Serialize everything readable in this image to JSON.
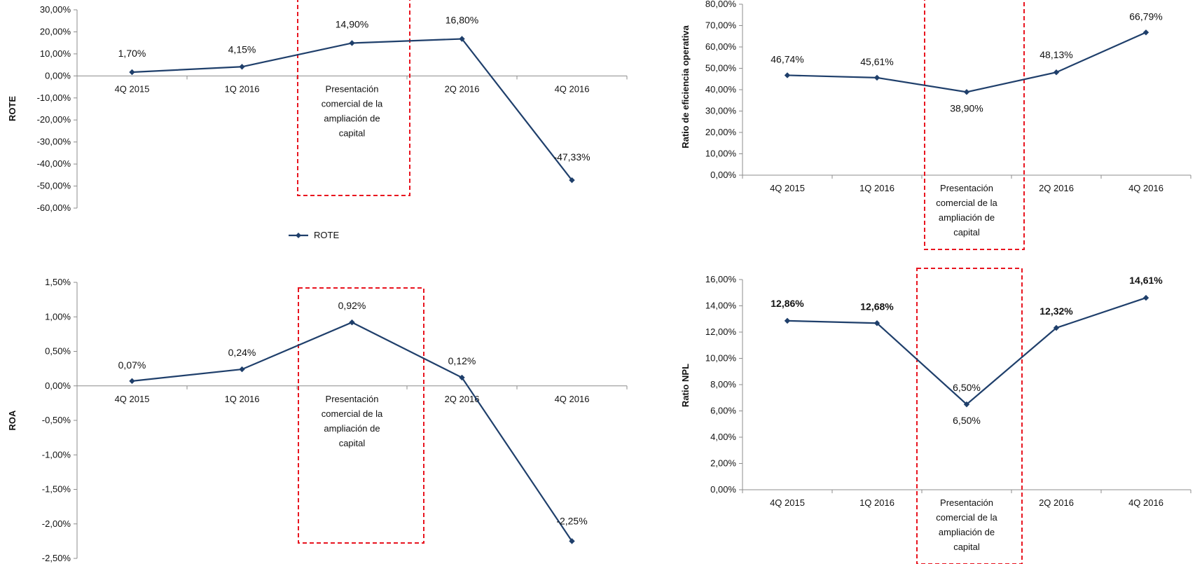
{
  "colors": {
    "line": "#1f3f6b",
    "highlight": "#e8141f",
    "axis": "#8c8c8c",
    "text": "#111111"
  },
  "chart_data": [
    {
      "type": "line",
      "ylabel": "ROTE",
      "categories": [
        "4Q 2015",
        "1Q 2016",
        "Presentación comercial de la ampliación de capital",
        "2Q 2016",
        "4Q 2016"
      ],
      "category_lines": [
        [
          "4Q 2015"
        ],
        [
          "1Q 2016"
        ],
        [
          "Presentación",
          "comercial de la",
          "ampliación de",
          "capital"
        ],
        [
          "2Q 2016"
        ],
        [
          "4Q 2016"
        ]
      ],
      "values": [
        1.7,
        4.15,
        14.9,
        16.8,
        -47.33
      ],
      "data_labels": [
        "1,70%",
        "4,15%",
        "14,90%",
        "16,80%",
        "-47,33%"
      ],
      "highlight_index": 2,
      "ylim": [
        -60,
        30
      ],
      "ytick_step": 10,
      "ytick_labels": [
        "30,00%",
        "20,00%",
        "10,00%",
        "0,00%",
        "-10,00%",
        "-20,00%",
        "-30,00%",
        "-40,00%",
        "-50,00%",
        "-60,00%"
      ],
      "legend": "ROTE",
      "legend_position": "bottom"
    },
    {
      "type": "line",
      "ylabel": "Ratio de eficiencia operativa",
      "categories": [
        "4Q 2015",
        "1Q 2016",
        "Presentación comercial de la ampliación de capital",
        "2Q 2016",
        "4Q 2016"
      ],
      "category_lines": [
        [
          "4Q 2015"
        ],
        [
          "1Q 2016"
        ],
        [
          "Presentación",
          "comercial de la",
          "ampliación de",
          "capital"
        ],
        [
          "2Q 2016"
        ],
        [
          "4Q 2016"
        ]
      ],
      "values": [
        46.74,
        45.61,
        38.9,
        48.13,
        66.79
      ],
      "data_labels": [
        "46,74%",
        "45,61%",
        "38,90%",
        "48,13%",
        "66,79%"
      ],
      "highlight_index": 2,
      "ylim": [
        0,
        80
      ],
      "ytick_step": 10,
      "ytick_labels": [
        "80,00%",
        "70,00%",
        "60,00%",
        "50,00%",
        "40,00%",
        "30,00%",
        "20,00%",
        "10,00%",
        "0,00%"
      ]
    },
    {
      "type": "line",
      "ylabel": "ROA",
      "categories": [
        "4Q 2015",
        "1Q 2016",
        "Presentación comercial de la ampliación de capital",
        "2Q 2016",
        "4Q 2016"
      ],
      "category_lines": [
        [
          "4Q 2015"
        ],
        [
          "1Q 2016"
        ],
        [
          "Presentación",
          "comercial de la",
          "ampliación de",
          "capital"
        ],
        [
          "2Q 2016"
        ],
        [
          "4Q 2016"
        ]
      ],
      "values": [
        0.07,
        0.24,
        0.92,
        0.12,
        -2.25
      ],
      "data_labels": [
        "0,07%",
        "0,24%",
        "0,92%",
        "0,12%",
        "-2,25%"
      ],
      "highlight_index": 2,
      "ylim": [
        -2.5,
        1.5
      ],
      "ytick_step": 0.5,
      "ytick_labels": [
        "1,50%",
        "1,00%",
        "0,50%",
        "0,00%",
        "-0,50%",
        "-1,00%",
        "-1,50%",
        "-2,00%",
        "-2,50%"
      ]
    },
    {
      "type": "line",
      "ylabel": "Ratio NPL",
      "categories": [
        "4Q 2015",
        "1Q 2016",
        "Presentación comercial de la ampliación de capital",
        "2Q 2016",
        "4Q 2016"
      ],
      "category_lines": [
        [
          "4Q 2015"
        ],
        [
          "1Q 2016"
        ],
        [
          "Presentación",
          "comercial de la",
          "ampliación de",
          "capital"
        ],
        [
          "2Q 2016"
        ],
        [
          "4Q 2016"
        ]
      ],
      "values": [
        12.86,
        12.68,
        6.5,
        12.32,
        14.61
      ],
      "data_labels": [
        "12,86%",
        "12,68%",
        "6,50%",
        "12,32%",
        "14,61%"
      ],
      "highlight_index": 2,
      "extra_label": "6,50%",
      "ylim": [
        0,
        16
      ],
      "ytick_step": 2,
      "ytick_labels": [
        "16,00%",
        "14,00%",
        "12,00%",
        "10,00%",
        "8,00%",
        "6,00%",
        "4,00%",
        "2,00%",
        "0,00%"
      ]
    }
  ]
}
